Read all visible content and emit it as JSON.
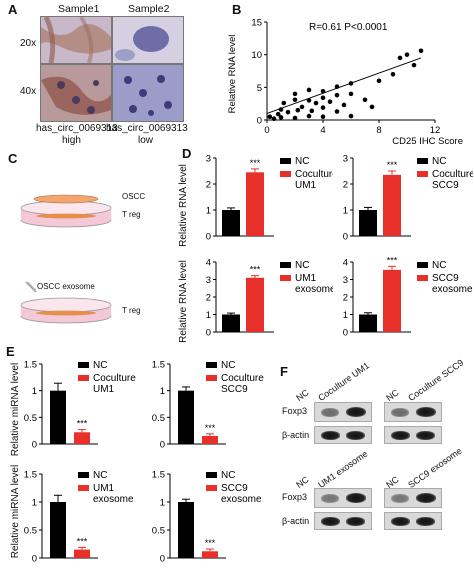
{
  "panelA": {
    "label": "A",
    "col_labels": [
      "Sample1",
      "Sample2"
    ],
    "row_labels": [
      "20x",
      "40x"
    ],
    "group_labels": [
      {
        "line1": "has_circ_0069313",
        "line2": "high"
      },
      {
        "line1": "has_circ_0069313",
        "line2": "low"
      }
    ]
  },
  "panelB": {
    "label": "B"
  },
  "panelC": {
    "label": "C",
    "top": {
      "upper": "OSCC",
      "lower": "T reg"
    },
    "bottom": {
      "upper": "OSCC exosome",
      "lower": "T reg"
    }
  },
  "panelD": {
    "label": "D",
    "ylabel": "Relative  RNA level"
  },
  "panelE": {
    "label": "E",
    "ylabel": "Relative  miRNA level"
  },
  "panelF": {
    "label": "F",
    "blots": [
      {
        "lanes": [
          "NC",
          "Coculture UM1"
        ],
        "rows": [
          "Foxp3",
          "β-actin"
        ]
      },
      {
        "lanes": [
          "NC",
          "Coculture SCC9"
        ],
        "rows": [
          "",
          ""
        ]
      },
      {
        "lanes": [
          "NC",
          "UM1 exosome"
        ],
        "rows": [
          "Foxp3",
          "β-actin"
        ]
      },
      {
        "lanes": [
          "NC",
          "SCC9 exosome"
        ],
        "rows": [
          "",
          ""
        ]
      }
    ]
  },
  "chart_data": [
    {
      "id": "B",
      "type": "scatter",
      "title": "",
      "annotation": "R=0.61 P<0.0001",
      "xlabel": "CD25 IHC Score",
      "ylabel": "Relative  RNA level",
      "xlim": [
        0,
        12
      ],
      "ylim": [
        0,
        15
      ],
      "xticks": [
        0,
        4,
        8,
        12
      ],
      "yticks": [
        0,
        5,
        10,
        15
      ],
      "points": [
        [
          0.2,
          0.5
        ],
        [
          0.5,
          0.2
        ],
        [
          0.8,
          0.9
        ],
        [
          1,
          0.4
        ],
        [
          1,
          1.6
        ],
        [
          1.2,
          2.6
        ],
        [
          1.5,
          1.2
        ],
        [
          2,
          0.3
        ],
        [
          2,
          3.1
        ],
        [
          2,
          4.0
        ],
        [
          2.2,
          1.5
        ],
        [
          2.5,
          2.0
        ],
        [
          3,
          0.6
        ],
        [
          3,
          3.0
        ],
        [
          3,
          4.6
        ],
        [
          3.2,
          1.4
        ],
        [
          3.5,
          2.6
        ],
        [
          4,
          0.5
        ],
        [
          4,
          1.9
        ],
        [
          4,
          3.4
        ],
        [
          4,
          4.4
        ],
        [
          4.5,
          2.8
        ],
        [
          5,
          1.3
        ],
        [
          5,
          3.8
        ],
        [
          5,
          5.1
        ],
        [
          5.5,
          2.3
        ],
        [
          6,
          0.6
        ],
        [
          6,
          4.0
        ],
        [
          6,
          5.6
        ],
        [
          7,
          3.1
        ],
        [
          7.5,
          2.0
        ],
        [
          8,
          6.0
        ],
        [
          9,
          7.0
        ],
        [
          9.5,
          9.5
        ],
        [
          10,
          10.0
        ],
        [
          10.5,
          8.4
        ],
        [
          11,
          10.6
        ]
      ],
      "fit_line": [
        [
          0,
          1.0
        ],
        [
          11,
          9.5
        ]
      ]
    },
    {
      "id": "D1",
      "type": "bar",
      "categories": [
        "NC",
        "Coculture UM1"
      ],
      "values": [
        1.0,
        2.45
      ],
      "errors": [
        0.08,
        0.13
      ],
      "ylim": [
        0,
        3
      ],
      "yticks": [
        0,
        1,
        2,
        3
      ],
      "significance": "***",
      "legend": [
        "NC",
        "Coculture UM1"
      ],
      "legend_lines": [
        [
          "NC"
        ],
        [
          "Coculture",
          "UM1"
        ]
      ]
    },
    {
      "id": "D2",
      "type": "bar",
      "categories": [
        "NC",
        "Coculture SCC9"
      ],
      "values": [
        1.0,
        2.35
      ],
      "errors": [
        0.1,
        0.15
      ],
      "ylim": [
        0,
        3
      ],
      "yticks": [
        0,
        1,
        2,
        3
      ],
      "significance": "***",
      "legend": [
        "NC",
        "Coculture SCC9"
      ],
      "legend_lines": [
        [
          "NC"
        ],
        [
          "Coculture",
          "SCC9"
        ]
      ]
    },
    {
      "id": "D3",
      "type": "bar",
      "categories": [
        "NC",
        "UM1 exosome"
      ],
      "values": [
        1.0,
        3.1
      ],
      "errors": [
        0.08,
        0.12
      ],
      "ylim": [
        0,
        4
      ],
      "yticks": [
        0,
        1,
        2,
        3,
        4
      ],
      "significance": "***",
      "legend": [
        "NC",
        "UM1 exosome"
      ],
      "legend_lines": [
        [
          "NC"
        ],
        [
          "UM1",
          "exosome"
        ]
      ]
    },
    {
      "id": "D4",
      "type": "bar",
      "categories": [
        "NC",
        "SCC9 exosome"
      ],
      "values": [
        1.0,
        3.55
      ],
      "errors": [
        0.1,
        0.2
      ],
      "ylim": [
        0,
        4
      ],
      "yticks": [
        0,
        1,
        2,
        3,
        4
      ],
      "significance": "***",
      "legend": [
        "NC",
        "SCC9 exosome"
      ],
      "legend_lines": [
        [
          "NC"
        ],
        [
          "SCC9",
          "exosome"
        ]
      ]
    },
    {
      "id": "E1",
      "type": "bar",
      "categories": [
        "NC",
        "Coculture UM1"
      ],
      "values": [
        1.0,
        0.22
      ],
      "errors": [
        0.14,
        0.05
      ],
      "ylim": [
        0,
        1.5
      ],
      "yticks": [
        0,
        0.5,
        1,
        1.5
      ],
      "significance": "***",
      "legend": [
        "NC",
        "Coculture UM1"
      ],
      "legend_lines": [
        [
          "NC"
        ],
        [
          "Coculture",
          "UM1"
        ]
      ]
    },
    {
      "id": "E2",
      "type": "bar",
      "categories": [
        "NC",
        "Coculture SCC9"
      ],
      "values": [
        1.0,
        0.15
      ],
      "errors": [
        0.07,
        0.04
      ],
      "ylim": [
        0,
        1.5
      ],
      "yticks": [
        0,
        0.5,
        1,
        1.5
      ],
      "significance": "***",
      "legend": [
        "NC",
        "Coculture SCC9"
      ],
      "legend_lines": [
        [
          "NC"
        ],
        [
          "Coculture",
          "SCC9"
        ]
      ]
    },
    {
      "id": "E3",
      "type": "bar",
      "categories": [
        "NC",
        "UM1 exosome"
      ],
      "values": [
        1.0,
        0.15
      ],
      "errors": [
        0.12,
        0.04
      ],
      "ylim": [
        0,
        1.5
      ],
      "yticks": [
        0,
        0.5,
        1,
        1.5
      ],
      "significance": "***",
      "legend": [
        "NC",
        "UM1 exosome"
      ],
      "legend_lines": [
        [
          "NC"
        ],
        [
          "UM1",
          "exosome"
        ]
      ]
    },
    {
      "id": "E4",
      "type": "bar",
      "categories": [
        "NC",
        "SCC9 exosome"
      ],
      "values": [
        1.0,
        0.12
      ],
      "errors": [
        0.05,
        0.04
      ],
      "ylim": [
        0,
        1.5
      ],
      "yticks": [
        0,
        0.5,
        1,
        1.5
      ],
      "significance": "***",
      "legend": [
        "NC",
        "SCC9 exosome"
      ],
      "legend_lines": [
        [
          "NC"
        ],
        [
          "SCC9",
          "exosome"
        ]
      ]
    }
  ]
}
